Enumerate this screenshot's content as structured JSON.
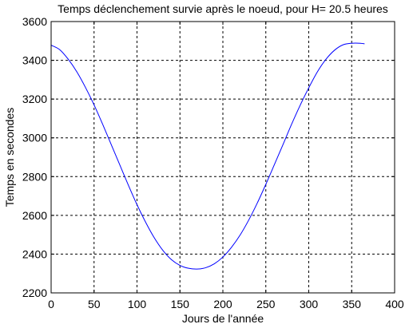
{
  "chart_data": {
    "type": "line",
    "title": "Temps déclenchement survie après le noeud, pour H= 20.5 heures",
    "xlabel": "Jours de l'année",
    "ylabel": "Temps en secondes",
    "xlim": [
      0,
      400
    ],
    "ylim": [
      2200,
      3600
    ],
    "xticks": [
      0,
      50,
      100,
      150,
      200,
      250,
      300,
      350,
      400
    ],
    "yticks": [
      2200,
      2400,
      2600,
      2800,
      3000,
      3200,
      3400,
      3600
    ],
    "grid": true,
    "series": [
      {
        "color": "#0000ff",
        "x": [
          0,
          10,
          20,
          30,
          40,
          50,
          60,
          70,
          80,
          90,
          100,
          110,
          120,
          130,
          140,
          150,
          160,
          170,
          180,
          190,
          200,
          210,
          220,
          230,
          240,
          250,
          260,
          270,
          280,
          290,
          300,
          310,
          320,
          330,
          340,
          350,
          360,
          365
        ],
        "y": [
          3478,
          3455,
          3405,
          3340,
          3260,
          3170,
          3070,
          2965,
          2860,
          2755,
          2655,
          2565,
          2485,
          2420,
          2372,
          2342,
          2327,
          2323,
          2330,
          2350,
          2385,
          2435,
          2498,
          2575,
          2663,
          2760,
          2862,
          2965,
          3070,
          3168,
          3258,
          3340,
          3405,
          3452,
          3480,
          3488,
          3488,
          3485
        ]
      }
    ]
  }
}
